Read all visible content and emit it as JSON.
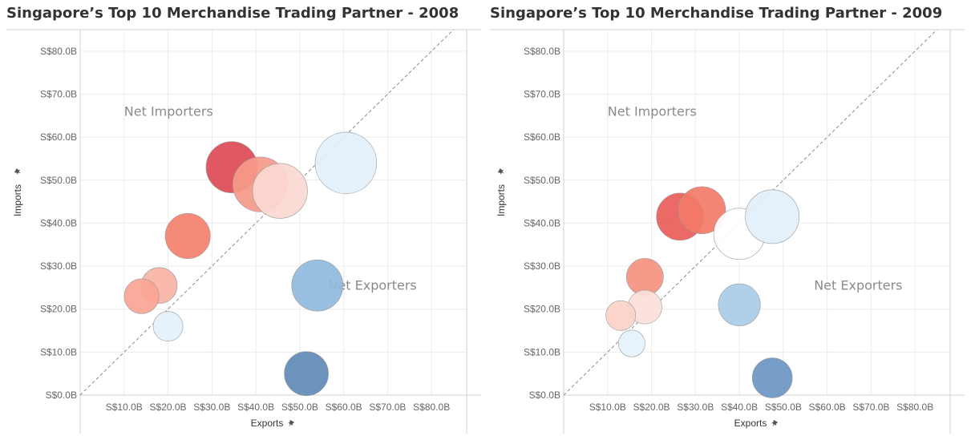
{
  "colors": {
    "grid": "#ececec",
    "axis": "#d0d0d0",
    "diagonal": "#8c8c8c",
    "bubble_stroke": "#9a9a9a"
  },
  "chart_data": [
    {
      "type": "scatter",
      "title": "Singapore’s Top 10 Merchandise Trading Partner - 2008",
      "xlabel": "Exports",
      "ylabel": "Imports",
      "xlim": [
        0,
        88
      ],
      "ylim": [
        0,
        85
      ],
      "x_ticks": [
        10,
        20,
        30,
        40,
        50,
        60,
        70,
        80
      ],
      "y_ticks": [
        0,
        10,
        20,
        30,
        40,
        50,
        60,
        70,
        80
      ],
      "x_tick_labels": [
        "S$10.0B",
        "S$20.0B",
        "S$30.0B",
        "S$40.0B",
        "S$50.0B",
        "S$60.0B",
        "S$70.0B",
        "S$80.0B"
      ],
      "y_tick_labels": [
        "S$0.0B",
        "S$10.0B",
        "S$20.0B",
        "S$30.0B",
        "S$40.0B",
        "S$50.0B",
        "S$60.0B",
        "S$70.0B",
        "S$80.0B"
      ],
      "diagonal": true,
      "region_labels": [
        {
          "text": "Net Importers",
          "x": 10,
          "y": 65
        },
        {
          "text": "Net Exporters",
          "x": 56.5,
          "y": 24.5
        }
      ],
      "points": [
        {
          "x": 34.5,
          "y": 53.0,
          "size": 1.0,
          "color": "#dc4a55"
        },
        {
          "x": 41.0,
          "y": 49.0,
          "size": 1.07,
          "color": "#f59a89"
        },
        {
          "x": 45.5,
          "y": 47.5,
          "size": 1.07,
          "color": "#fbd8d2"
        },
        {
          "x": 60.5,
          "y": 54.0,
          "size": 1.2,
          "color": "#e2f0fb"
        },
        {
          "x": 24.5,
          "y": 37.0,
          "size": 0.88,
          "color": "#f4806c"
        },
        {
          "x": 18.0,
          "y": 25.5,
          "size": 0.7,
          "color": "#f9b3a6"
        },
        {
          "x": 14.0,
          "y": 23.0,
          "size": 0.68,
          "color": "#f8a494"
        },
        {
          "x": 20.0,
          "y": 16.0,
          "size": 0.58,
          "color": "#e4f1fb"
        },
        {
          "x": 54.0,
          "y": 25.5,
          "size": 1.0,
          "color": "#8fb8dd"
        },
        {
          "x": 51.5,
          "y": 5.0,
          "size": 0.86,
          "color": "#5e8ab6"
        }
      ]
    },
    {
      "type": "scatter",
      "title": "Singapore’s Top 10 Merchandise Trading Partner - 2009",
      "xlabel": "Exports",
      "ylabel": "Imports",
      "xlim": [
        0,
        88
      ],
      "ylim": [
        0,
        85
      ],
      "x_ticks": [
        10,
        20,
        30,
        40,
        50,
        60,
        70,
        80
      ],
      "y_ticks": [
        0,
        10,
        20,
        30,
        40,
        50,
        60,
        70,
        80
      ],
      "x_tick_labels": [
        "S$10.0B",
        "S$20.0B",
        "S$30.0B",
        "S$40.0B",
        "S$50.0B",
        "S$60.0B",
        "S$70.0B",
        "S$80.0B"
      ],
      "y_tick_labels": [
        "S$0.0B",
        "S$10.0B",
        "S$20.0B",
        "S$30.0B",
        "S$40.0B",
        "S$50.0B",
        "S$60.0B",
        "S$70.0B",
        "S$80.0B"
      ],
      "diagonal": true,
      "region_labels": [
        {
          "text": "Net Importers",
          "x": 10,
          "y": 65
        },
        {
          "text": "Net Exporters",
          "x": 57,
          "y": 24.5
        }
      ],
      "points": [
        {
          "x": 26.5,
          "y": 41.5,
          "size": 0.92,
          "color": "#ea5d58"
        },
        {
          "x": 31.5,
          "y": 43.0,
          "size": 0.92,
          "color": "#f37a68"
        },
        {
          "x": 40.0,
          "y": 37.5,
          "size": 1.0,
          "color": "#ffffff"
        },
        {
          "x": 47.5,
          "y": 41.5,
          "size": 1.05,
          "color": "#e2f0fb"
        },
        {
          "x": 18.5,
          "y": 27.5,
          "size": 0.72,
          "color": "#f5927f"
        },
        {
          "x": 18.5,
          "y": 20.5,
          "size": 0.66,
          "color": "#fbe0da"
        },
        {
          "x": 13.0,
          "y": 18.5,
          "size": 0.58,
          "color": "#fcd2c8"
        },
        {
          "x": 15.5,
          "y": 12.0,
          "size": 0.52,
          "color": "#e5f2fc"
        },
        {
          "x": 40.0,
          "y": 21.0,
          "size": 0.82,
          "color": "#a9cce7"
        },
        {
          "x": 47.5,
          "y": 4.0,
          "size": 0.78,
          "color": "#6a96c4"
        }
      ]
    }
  ]
}
